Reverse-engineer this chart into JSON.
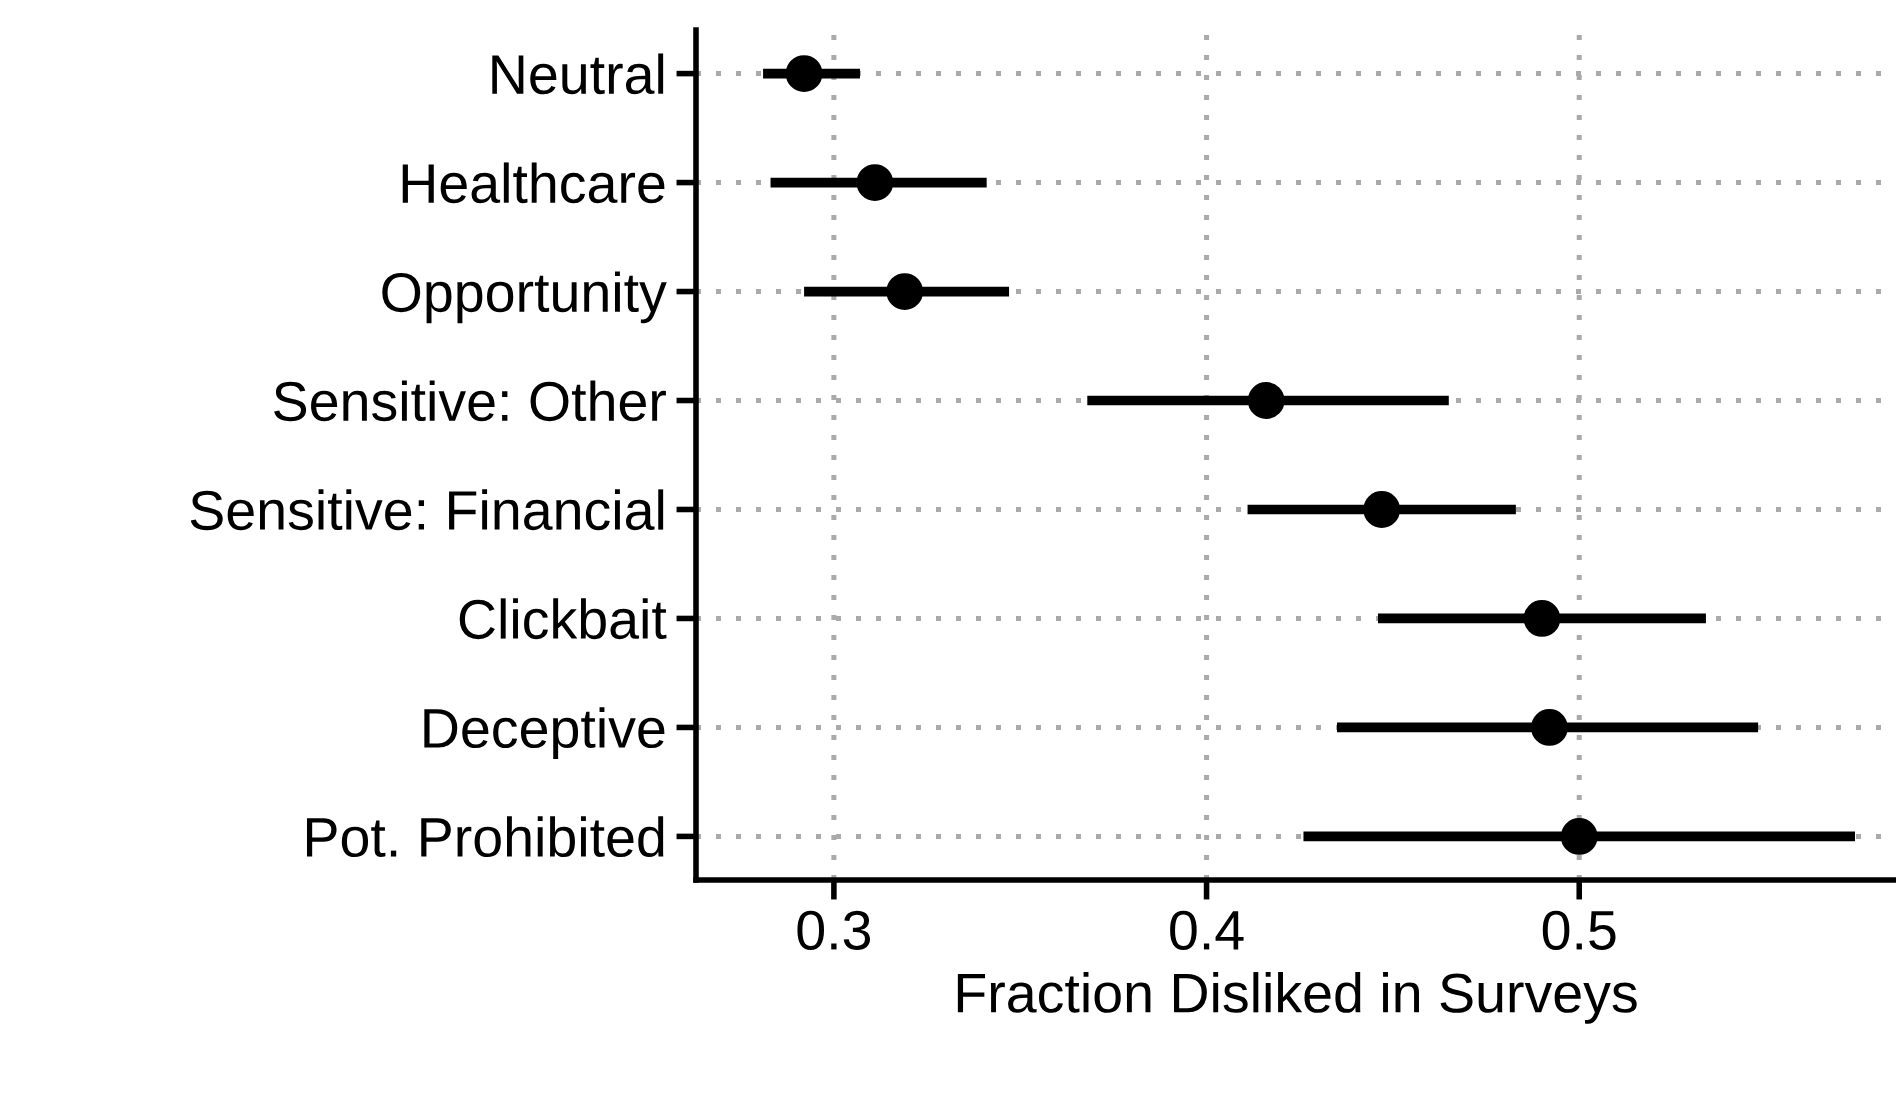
{
  "chart_data": {
    "type": "scatter",
    "xlabel": "Fraction Disliked in Surveys",
    "categories": [
      "Neutral",
      "Healthcare",
      "Opportunity",
      "Sensitive: Other",
      "Sensitive: Financial",
      "Clickbait",
      "Deceptive",
      "Pot. Prohibited"
    ],
    "orientation": "horizontal",
    "values": [
      0.292,
      0.311,
      0.319,
      0.416,
      0.447,
      0.49,
      0.492,
      0.5
    ],
    "errors": [
      [
        0.281,
        0.307
      ],
      [
        0.283,
        0.341
      ],
      [
        0.292,
        0.347
      ],
      [
        0.368,
        0.465
      ],
      [
        0.411,
        0.483
      ],
      [
        0.446,
        0.534
      ],
      [
        0.435,
        0.548
      ],
      [
        0.426,
        0.574
      ]
    ],
    "color": "#000000",
    "marker": "circle",
    "xlim": [
      0.263,
      0.585
    ],
    "xticks": [
      0.3,
      0.4,
      0.5
    ],
    "grid": true
  }
}
